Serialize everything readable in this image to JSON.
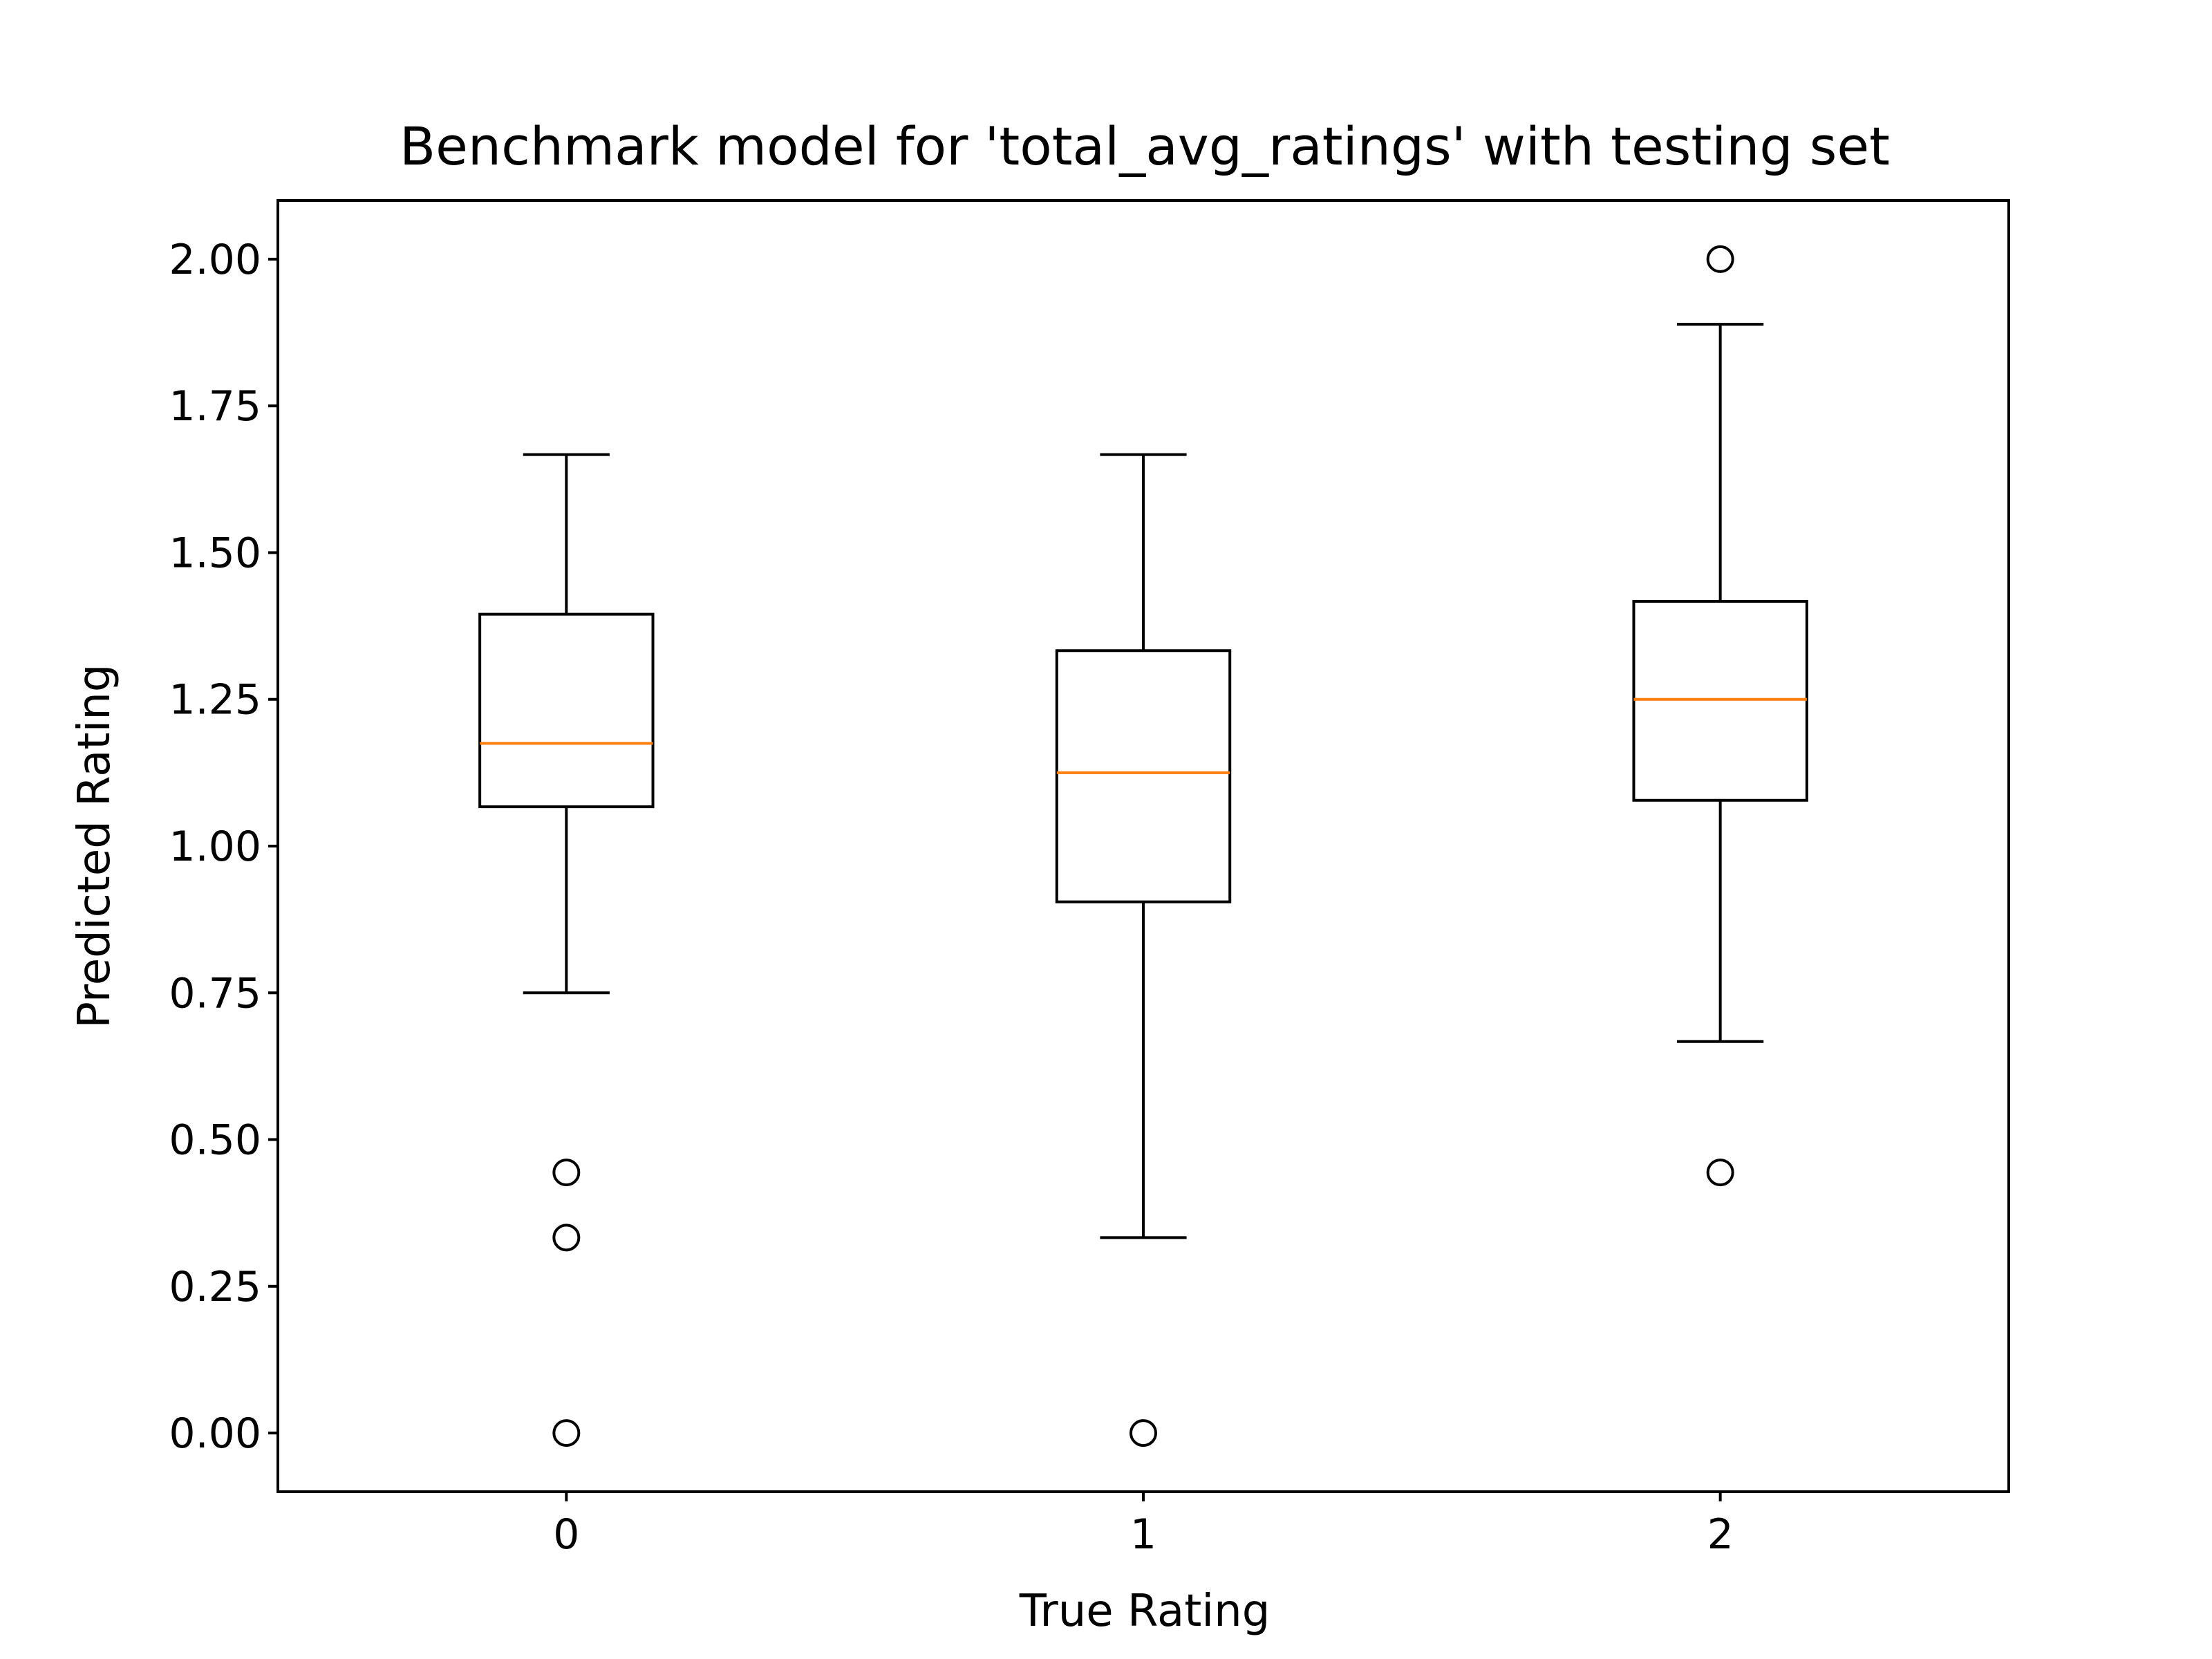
{
  "chart_data": {
    "type": "boxplot",
    "title": "Benchmark model for 'total_avg_ratings' with testing set",
    "xlabel": "True Rating",
    "ylabel": "Predicted Rating",
    "categories": [
      "0",
      "1",
      "2"
    ],
    "ylim": [
      -0.1,
      2.1
    ],
    "xlim": [
      -0.5,
      2.5
    ],
    "y_ticks": [
      0.0,
      0.25,
      0.5,
      0.75,
      1.0,
      1.25,
      1.5,
      1.75,
      2.0
    ],
    "y_tick_labels": [
      "0.00",
      "0.25",
      "0.50",
      "0.75",
      "1.00",
      "1.25",
      "1.50",
      "1.75",
      "2.00"
    ],
    "grid": false,
    "boxes": [
      {
        "category": "0",
        "whisker_low": 0.75,
        "q1": 1.067,
        "median": 1.175,
        "q3": 1.395,
        "whisker_high": 1.667,
        "outliers": [
          0.444,
          0.333,
          0.0
        ]
      },
      {
        "category": "1",
        "whisker_low": 0.333,
        "q1": 0.905,
        "median": 1.125,
        "q3": 1.333,
        "whisker_high": 1.667,
        "outliers": [
          0.0
        ]
      },
      {
        "category": "2",
        "whisker_low": 0.667,
        "q1": 1.078,
        "median": 1.25,
        "q3": 1.417,
        "whisker_high": 1.889,
        "outliers": [
          2.0,
          0.444
        ]
      }
    ],
    "colors": {
      "box": "#000000",
      "median": "#ff7f0e",
      "outlier_fill": "#ffffff"
    }
  }
}
